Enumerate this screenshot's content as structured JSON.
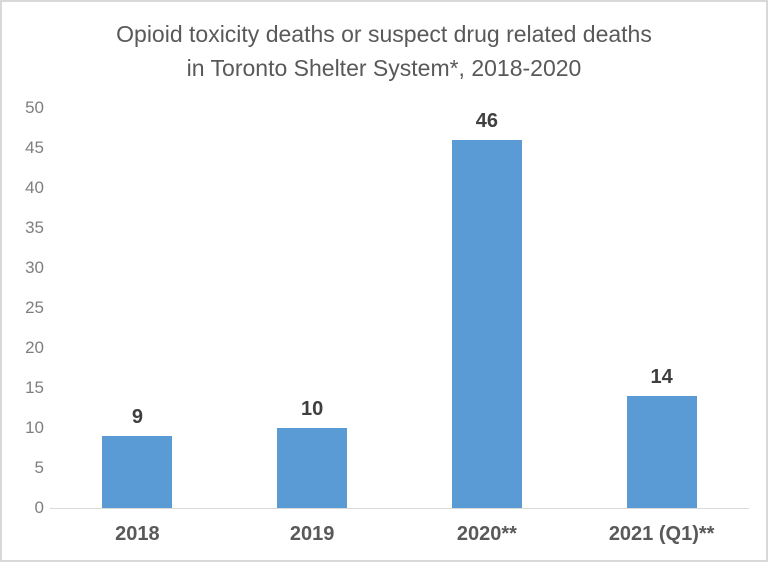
{
  "chart_data": {
    "type": "bar",
    "title": "Opioid toxicity deaths or suspect drug related deaths in Toronto Shelter System*, 2018-2020",
    "title_lines": [
      "Opioid toxicity deaths or suspect drug related deaths",
      "in Toronto Shelter System*, 2018-2020"
    ],
    "categories": [
      "2018",
      "2019",
      "2020**",
      "2021 (Q1)**"
    ],
    "values": [
      9,
      10,
      46,
      14
    ],
    "data_labels": [
      "9",
      "10",
      "46",
      "14"
    ],
    "y_ticks": [
      0,
      5,
      10,
      15,
      20,
      25,
      30,
      35,
      40,
      45,
      50
    ],
    "ylim": [
      0,
      50
    ],
    "xlabel": "",
    "ylabel": "",
    "grid": false,
    "legend": false,
    "bar_color": "#5B9BD5",
    "colors": {
      "title": "#595959",
      "tick_labels": "#7f7f7f",
      "category_labels": "#595959",
      "data_labels": "#3f3f3f",
      "axis_line": "#d9d9d9",
      "frame_border": "#d9d9d9",
      "background": "#ffffff"
    }
  }
}
